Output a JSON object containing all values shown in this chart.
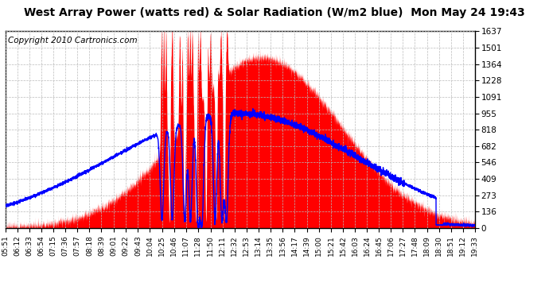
{
  "title": "West Array Power (watts red) & Solar Radiation (W/m2 blue)  Mon May 24 19:43",
  "copyright": "Copyright 2010 Cartronics.com",
  "yticks": [
    0.0,
    136.4,
    272.8,
    409.2,
    545.7,
    682.1,
    818.5,
    954.9,
    1091.3,
    1227.7,
    1364.1,
    1500.6,
    1637.0
  ],
  "ymax": 1637.0,
  "ymin": 0.0,
  "background_color": "#ffffff",
  "plot_bg_color": "#ffffff",
  "grid_color": "#bbbbbb",
  "red_color": "#ff0000",
  "blue_color": "#0000ff",
  "title_fontsize": 10,
  "copyright_fontsize": 7.5,
  "x_tick_fontsize": 6.5,
  "y_tick_fontsize": 7.5,
  "x_labels": [
    "05:51",
    "06:12",
    "06:33",
    "06:54",
    "07:15",
    "07:36",
    "07:57",
    "08:18",
    "08:39",
    "09:01",
    "09:22",
    "09:43",
    "10:04",
    "10:25",
    "10:46",
    "11:07",
    "11:28",
    "11:50",
    "12:11",
    "12:32",
    "12:53",
    "13:14",
    "13:35",
    "13:56",
    "14:17",
    "14:39",
    "15:00",
    "15:21",
    "15:42",
    "16:03",
    "16:24",
    "16:45",
    "17:06",
    "17:27",
    "17:48",
    "18:09",
    "18:30",
    "18:51",
    "19:12",
    "19:33"
  ]
}
